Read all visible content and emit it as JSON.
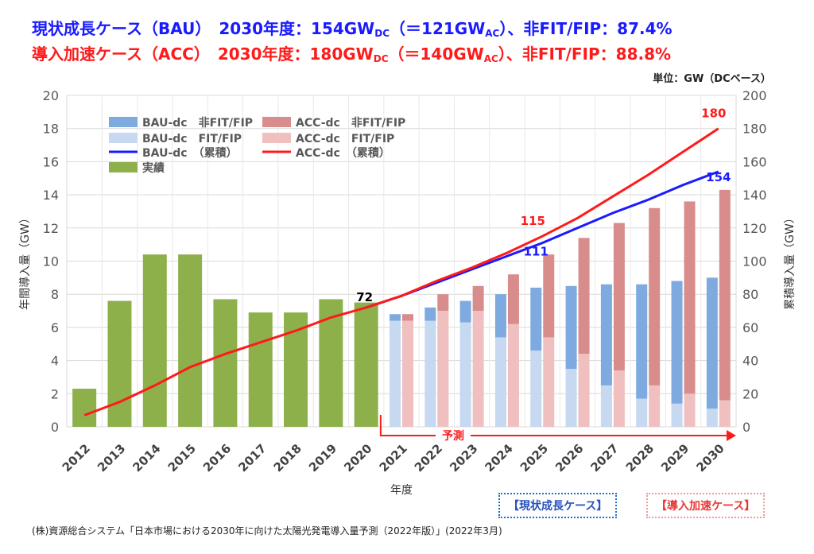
{
  "header": {
    "line1": {
      "case": "現状成長ケース（BAU）",
      "year": "2030年度：154GW",
      "sub1": "DC",
      "mid": "（＝121GW",
      "sub2": "AC",
      "tail": "）、非FIT/FIP：87.4%"
    },
    "line2": {
      "case": "導入加速ケース（ACC）",
      "year": "2030年度：180GW",
      "sub1": "DC",
      "mid": "（＝140GW",
      "sub2": "AC",
      "tail": "）、非FIT/FIP：88.8%"
    },
    "unit": "単位：GW（DCベース）"
  },
  "case_boxes": {
    "bau": "【現状成長ケース】",
    "acc": "【導入加速ケース】"
  },
  "source": "(株)資源総合システム「日本市場における2030年に向けた太陽光発電導入量予測（2022年版）」(2022年3月)",
  "colors": {
    "actual": "#8db04b",
    "bau_nonfit": "#7faadf",
    "bau_fit": "#c6d9f0",
    "acc_nonfit": "#d98c8c",
    "acc_fit": "#f0c0c0",
    "bau_line": "#1a1aff",
    "acc_line": "#ff1a1a",
    "forecast_arrow": "#ff1a1a"
  },
  "chart_data": {
    "type": "bar",
    "xlabel": "年度",
    "ylabel": "年間導入量（GW）",
    "y2label": "累積導入量（GW）",
    "ylim": [
      0,
      20
    ],
    "y2lim": [
      0,
      200
    ],
    "yticks": [
      0,
      2,
      4,
      6,
      8,
      10,
      12,
      14,
      16,
      18,
      20
    ],
    "y2ticks": [
      0,
      20,
      40,
      60,
      80,
      100,
      120,
      140,
      160,
      180,
      200
    ],
    "categories": [
      "2012",
      "2013",
      "2014",
      "2015",
      "2016",
      "2017",
      "2018",
      "2019",
      "2020",
      "2021",
      "2022",
      "2023",
      "2024",
      "2025",
      "2026",
      "2027",
      "2028",
      "2029",
      "2030"
    ],
    "forecast_label": "予測",
    "series": [
      {
        "name": "実績",
        "kind": "bar",
        "values": [
          2.3,
          7.6,
          10.4,
          10.4,
          7.7,
          6.9,
          6.9,
          7.7,
          7.5,
          null,
          null,
          null,
          null,
          null,
          null,
          null,
          null,
          null,
          null
        ]
      },
      {
        "name": "BAU-dc　非FIT/FIP",
        "kind": "bar",
        "values": [
          null,
          null,
          null,
          null,
          null,
          null,
          null,
          null,
          null,
          0.4,
          0.8,
          1.3,
          2.6,
          3.8,
          5.0,
          6.1,
          6.9,
          7.4,
          7.9
        ]
      },
      {
        "name": "BAU-dc　FIT/FIP",
        "kind": "bar",
        "values": [
          null,
          null,
          null,
          null,
          null,
          null,
          null,
          null,
          null,
          6.4,
          6.4,
          6.3,
          5.4,
          4.6,
          3.5,
          2.5,
          1.7,
          1.4,
          1.1
        ]
      },
      {
        "name": "ACC-dc　非FIT/FIP",
        "kind": "bar",
        "values": [
          null,
          null,
          null,
          null,
          null,
          null,
          null,
          null,
          null,
          0.4,
          1.0,
          1.5,
          3.0,
          5.0,
          7.0,
          8.9,
          10.7,
          11.6,
          12.7
        ]
      },
      {
        "name": "ACC-dc　FIT/FIP",
        "kind": "bar",
        "values": [
          null,
          null,
          null,
          null,
          null,
          null,
          null,
          null,
          null,
          6.4,
          7.0,
          7.0,
          6.2,
          5.4,
          4.4,
          3.4,
          2.5,
          2.0,
          1.6
        ]
      },
      {
        "name": "BAU-dc　（累積）",
        "kind": "line",
        "axis": "right",
        "values": [
          null,
          null,
          null,
          null,
          null,
          null,
          null,
          null,
          72,
          79,
          87,
          95,
          103,
          111,
          120,
          129,
          137,
          146,
          154
        ]
      },
      {
        "name": "ACC-dc　（累積）",
        "kind": "line",
        "axis": "right",
        "values": [
          7,
          15,
          25,
          36,
          44,
          51,
          58,
          66,
          72,
          79,
          88,
          96,
          105,
          115,
          126,
          139,
          152,
          166,
          180
        ]
      }
    ],
    "annotations": [
      {
        "text": "72",
        "category": "2020",
        "value": 72,
        "color": "#000000"
      },
      {
        "text": "111",
        "category": "2025",
        "value": 111,
        "color": "#1a1aff"
      },
      {
        "text": "115",
        "category": "2025",
        "value": 115,
        "color": "#ff1a1a"
      },
      {
        "text": "154",
        "category": "2030",
        "value": 154,
        "color": "#1a1aff"
      },
      {
        "text": "180",
        "category": "2030",
        "value": 180,
        "color": "#ff1a1a"
      }
    ],
    "legend_position": "top-left",
    "grid": true
  }
}
